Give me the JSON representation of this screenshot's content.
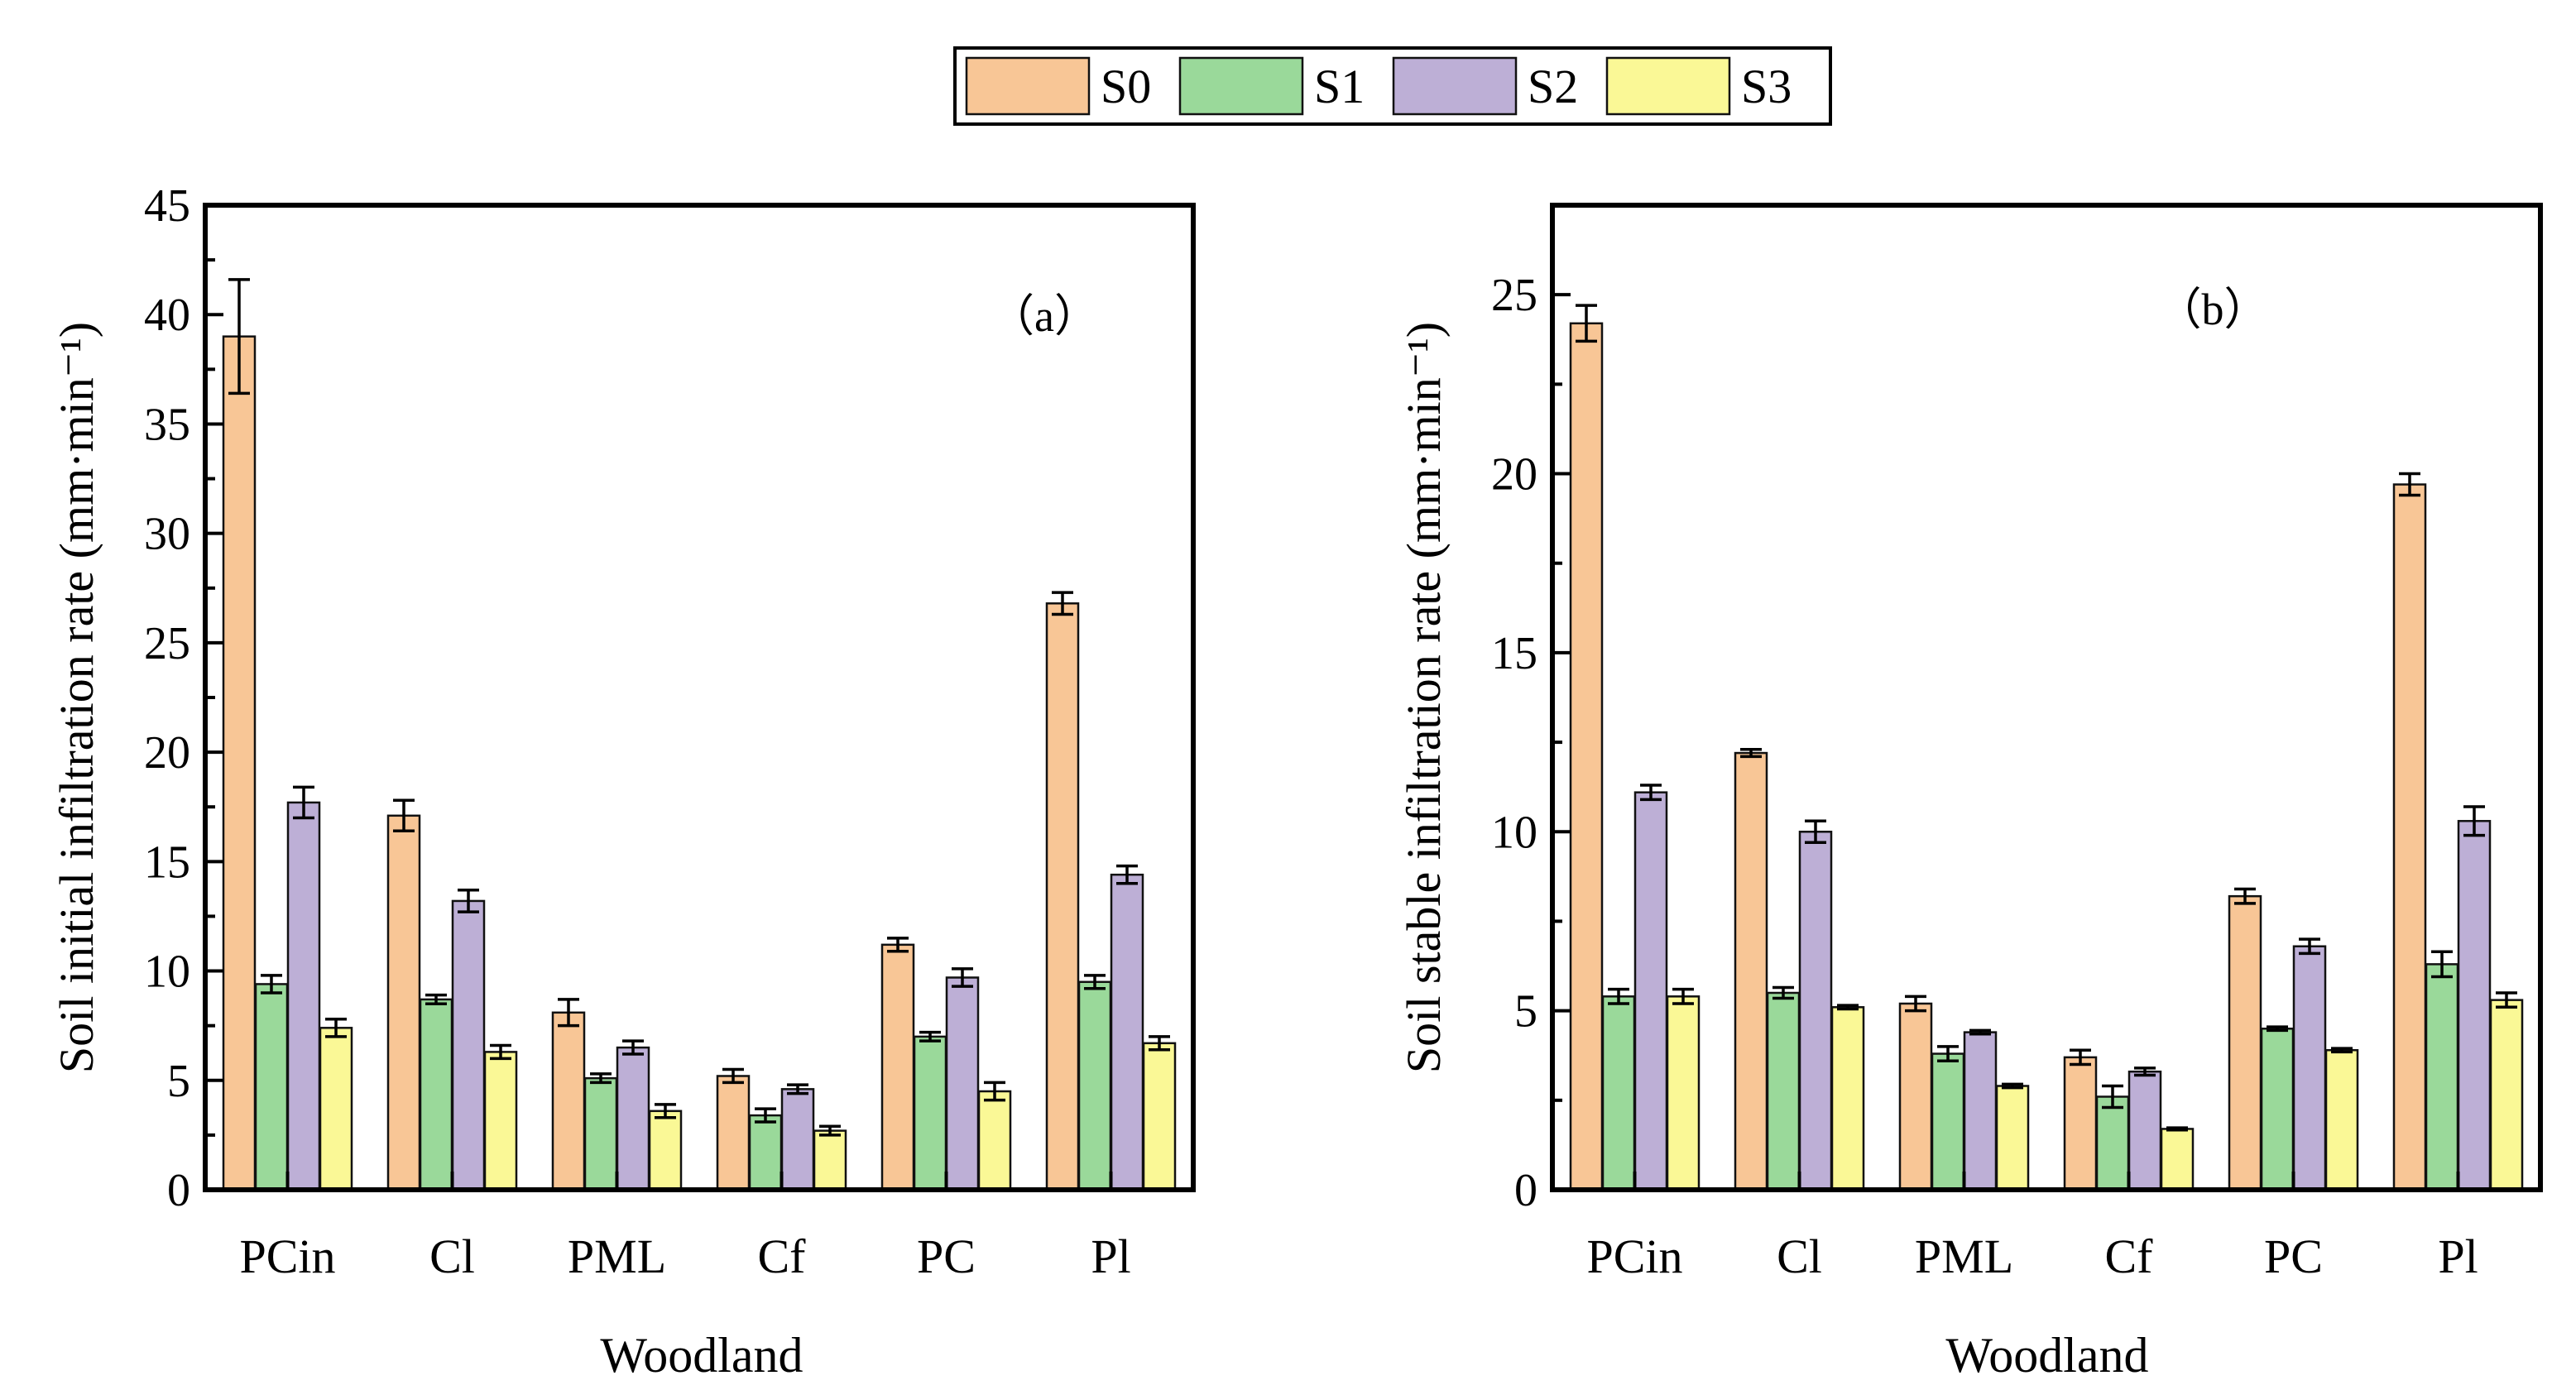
{
  "legend": {
    "items": [
      {
        "name": "S0",
        "color": "#F8C696"
      },
      {
        "name": "S1",
        "color": "#9AD99A"
      },
      {
        "name": "S2",
        "color": "#BDAFD6"
      },
      {
        "name": "S3",
        "color": "#FAF896"
      }
    ]
  },
  "chart_data": [
    {
      "type": "bar",
      "panel_label": "（a）",
      "title": "",
      "xlabel": "Woodland",
      "ylabel": "Soil initial infiltration rate (mm·min⁻¹)",
      "ylim": [
        0,
        45
      ],
      "yticks": [
        0,
        5,
        10,
        15,
        20,
        25,
        30,
        35,
        40,
        45
      ],
      "categories": [
        "PCin",
        "Cl",
        "PML",
        "Cf",
        "PC",
        "Pl"
      ],
      "series": [
        {
          "name": "S0",
          "values": [
            39.0,
            17.1,
            8.1,
            5.2,
            11.2,
            26.8
          ],
          "errors": [
            2.6,
            0.7,
            0.6,
            0.3,
            0.3,
            0.5
          ]
        },
        {
          "name": "S1",
          "values": [
            9.4,
            8.7,
            5.1,
            3.4,
            7.0,
            9.5
          ],
          "errors": [
            0.4,
            0.2,
            0.2,
            0.3,
            0.2,
            0.3
          ]
        },
        {
          "name": "S2",
          "values": [
            17.7,
            13.2,
            6.5,
            4.6,
            9.7,
            14.4
          ],
          "errors": [
            0.7,
            0.5,
            0.3,
            0.2,
            0.4,
            0.4
          ]
        },
        {
          "name": "S3",
          "values": [
            7.4,
            6.3,
            3.6,
            2.7,
            4.5,
            6.7
          ],
          "errors": [
            0.4,
            0.3,
            0.3,
            0.2,
            0.4,
            0.3
          ]
        }
      ]
    },
    {
      "type": "bar",
      "panel_label": "（b）",
      "title": "",
      "xlabel": "Woodland",
      "ylabel": "Soil stable infiltration rate (mm·min⁻¹)",
      "ylim": [
        0,
        27.5
      ],
      "yticks": [
        0,
        5,
        10,
        15,
        20,
        25
      ],
      "categories": [
        "PCin",
        "Cl",
        "PML",
        "Cf",
        "PC",
        "Pl"
      ],
      "series": [
        {
          "name": "S0",
          "values": [
            24.2,
            12.2,
            5.2,
            3.7,
            8.2,
            19.7
          ],
          "errors": [
            0.5,
            0.1,
            0.2,
            0.2,
            0.2,
            0.3
          ]
        },
        {
          "name": "S1",
          "values": [
            5.4,
            5.5,
            3.8,
            2.6,
            4.5,
            6.3
          ],
          "errors": [
            0.2,
            0.15,
            0.2,
            0.3,
            0.05,
            0.35
          ]
        },
        {
          "name": "S2",
          "values": [
            11.1,
            10.0,
            4.4,
            3.3,
            6.8,
            10.3
          ],
          "errors": [
            0.2,
            0.3,
            0.05,
            0.1,
            0.2,
            0.4
          ]
        },
        {
          "name": "S3",
          "values": [
            5.4,
            5.1,
            2.9,
            1.7,
            3.9,
            5.3
          ],
          "errors": [
            0.2,
            0.05,
            0.05,
            0.03,
            0.05,
            0.2
          ]
        }
      ]
    }
  ]
}
